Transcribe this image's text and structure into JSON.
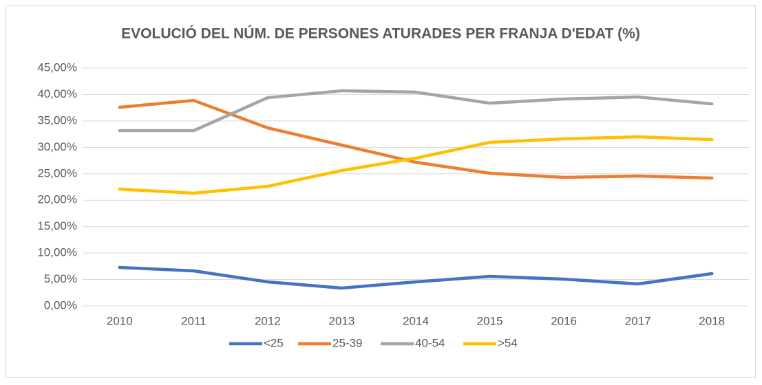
{
  "chart_data": {
    "type": "line",
    "title": "EVOLUCIÓ DEL NÚM. DE PERSONES ATURADES PER FRANJA D'EDAT (%)",
    "categories": [
      "2010",
      "2011",
      "2012",
      "2013",
      "2014",
      "2015",
      "2016",
      "2017",
      "2018"
    ],
    "series": [
      {
        "name": "<25",
        "color": "#4472c4",
        "values": [
          7.28,
          6.63,
          4.55,
          3.38,
          4.55,
          5.59,
          5.07,
          4.16,
          6.11
        ]
      },
      {
        "name": "25-39",
        "color": "#ed7d31",
        "values": [
          37.58,
          38.88,
          33.68,
          30.43,
          27.18,
          25.1,
          24.32,
          24.58,
          24.19
        ]
      },
      {
        "name": "40-54",
        "color": "#a5a5a5",
        "values": [
          33.16,
          33.16,
          39.4,
          40.7,
          40.44,
          38.36,
          39.14,
          39.53,
          38.23
        ]
      },
      {
        "name": ">54",
        "color": "#ffc000",
        "values": [
          22.1,
          21.33,
          22.63,
          25.62,
          27.96,
          30.95,
          31.6,
          31.99,
          31.47
        ]
      }
    ],
    "ylim": [
      0,
      45
    ],
    "yticks": [
      {
        "value": 0,
        "label": "0,00%"
      },
      {
        "value": 5,
        "label": "5,00%"
      },
      {
        "value": 10,
        "label": "10,00%"
      },
      {
        "value": 15,
        "label": "15,00%"
      },
      {
        "value": 20,
        "label": "20,00%"
      },
      {
        "value": 25,
        "label": "25,00%"
      },
      {
        "value": 30,
        "label": "30,00%"
      },
      {
        "value": 35,
        "label": "35,00%"
      },
      {
        "value": 40,
        "label": "40,00%"
      },
      {
        "value": 45,
        "label": "45,00%"
      }
    ],
    "grid": true,
    "legend": "bottom"
  }
}
